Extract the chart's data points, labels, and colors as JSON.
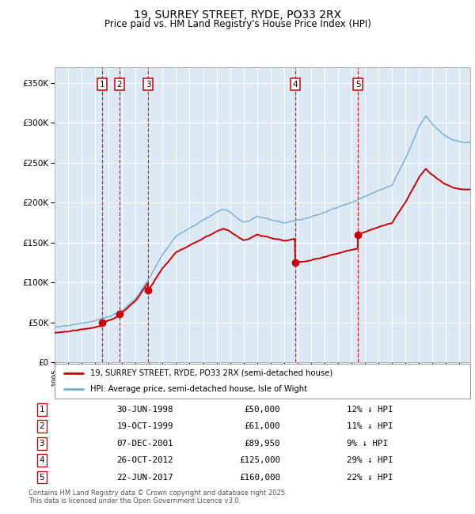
{
  "title1": "19, SURREY STREET, RYDE, PO33 2RX",
  "title2": "Price paid vs. HM Land Registry's House Price Index (HPI)",
  "legend1": "19, SURREY STREET, RYDE, PO33 2RX (semi-detached house)",
  "legend2": "HPI: Average price, semi-detached house, Isle of Wight",
  "footnote": "Contains HM Land Registry data © Crown copyright and database right 2025.\nThis data is licensed under the Open Government Licence v3.0.",
  "sales": [
    {
      "num": 1,
      "price": 50000,
      "x": 1998.5
    },
    {
      "num": 2,
      "price": 61000,
      "x": 1999.79
    },
    {
      "num": 3,
      "price": 89950,
      "x": 2001.93
    },
    {
      "num": 4,
      "price": 125000,
      "x": 2012.82
    },
    {
      "num": 5,
      "price": 160000,
      "x": 2017.47
    }
  ],
  "table_rows": [
    {
      "num": 1,
      "date_str": "30-JUN-1998",
      "price_str": "£50,000",
      "pct_str": "12% ↓ HPI"
    },
    {
      "num": 2,
      "date_str": "19-OCT-1999",
      "price_str": "£61,000",
      "pct_str": "11% ↓ HPI"
    },
    {
      "num": 3,
      "date_str": "07-DEC-2001",
      "price_str": "£89,950",
      "pct_str": "9% ↓ HPI"
    },
    {
      "num": 4,
      "date_str": "26-OCT-2012",
      "price_str": "£125,000",
      "pct_str": "29% ↓ HPI"
    },
    {
      "num": 5,
      "date_str": "22-JUN-2017",
      "price_str": "£160,000",
      "pct_str": "22% ↓ HPI"
    }
  ],
  "hpi_color": "#6baed6",
  "price_color": "#cc0000",
  "vline_color": "#cc0000",
  "bg_color": "#dce9f5",
  "grid_color": "#ffffff",
  "ylim": [
    0,
    370000
  ],
  "xlim_start": 1995.0,
  "xlim_end": 2025.8
}
